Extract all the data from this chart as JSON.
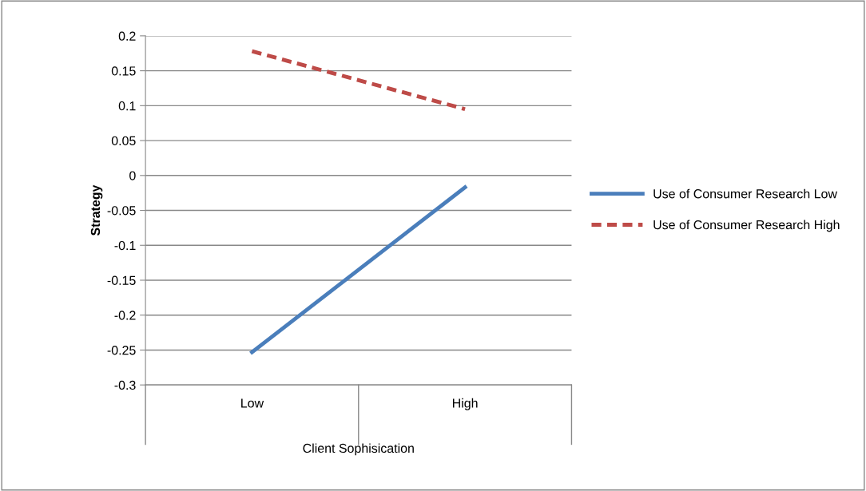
{
  "chart_data": {
    "type": "line",
    "xlabel": "Client Sophisication",
    "ylabel": "Strategy",
    "categories": [
      "Low",
      "High"
    ],
    "series": [
      {
        "name": "Use of Consumer Research Low",
        "color": "#4a7ebb",
        "values": [
          -0.253,
          -0.017
        ],
        "line_style": "solid"
      },
      {
        "name": "Use of Consumer Research High",
        "color": "#be4b48",
        "values": [
          0.178,
          0.095
        ],
        "line_style": "dashed"
      }
    ],
    "ylim": [
      -0.3,
      0.2
    ],
    "yticks": [
      -0.3,
      -0.25,
      -0.2,
      -0.15,
      -0.1,
      -0.05,
      0,
      0.05,
      0.1,
      0.15,
      0.2
    ],
    "grid": "y",
    "legend": "right",
    "marker": "none"
  }
}
